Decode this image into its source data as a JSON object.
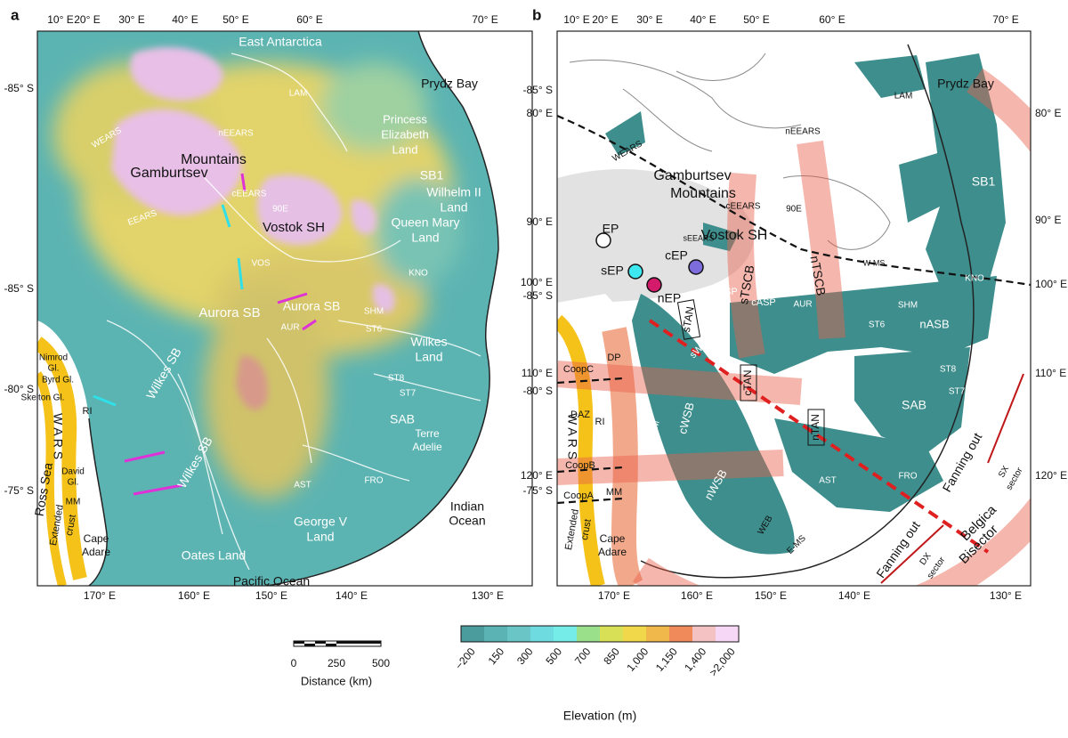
{
  "panels": [
    {
      "letter": "a",
      "top_lon": [
        "10° E",
        "20° E",
        "30° E",
        "40° E",
        "50° E",
        "60° E",
        "70° E"
      ],
      "bottom_lon": [
        "170° E",
        "160° E",
        "150° E",
        "140° E",
        "130° E"
      ],
      "left_lat": [
        "-85° S",
        "-85° S",
        "-80° S",
        "-75° S"
      ],
      "labels": [
        "East Antarctica",
        "Prydz Bay",
        "LAM",
        "Princess",
        "Elizabeth",
        "Land",
        "WEARS",
        "Gamburtsev",
        "Mountains",
        "nEEARS",
        "cEEARS",
        "SB1",
        "Wilhelm II",
        "Land",
        "Queen Mary",
        "Land",
        "90E",
        "Vostok SH",
        "EEARS",
        "VOS",
        "KNO",
        "Aurora SB",
        "Aurora SB",
        "AUR",
        "SHM",
        "ST6",
        "Wilkes",
        "Land",
        "Wilkes SB",
        "ST8",
        "ST7",
        "SAB",
        "Terre",
        "Adelie",
        "W A R S",
        "Ross Sea",
        "Nimrod",
        "Gl.",
        "Byrd Gl.",
        "Skelton Gl.",
        "RI",
        "David",
        "Gl.",
        "MM",
        "Extended",
        "crust",
        "Cape",
        "Adare",
        "Oates Land",
        "Pacific Ocean",
        "George V",
        "Land",
        "Indian",
        "Ocean",
        "AST",
        "FRO",
        "Wilkes SB"
      ]
    },
    {
      "letter": "b",
      "top_lon": [
        "10° E",
        "20° E",
        "30° E",
        "40° E",
        "50° E",
        "60° E",
        "70° E"
      ],
      "bottom_lon": [
        "170° E",
        "160° E",
        "150° E",
        "140° E",
        "130° E"
      ],
      "left_lat": [
        "-85° S",
        "80° E",
        "90° E",
        "100° E",
        "-85° S",
        "110° E",
        "-80° S",
        "120° E",
        "-75° S"
      ],
      "right_lat": [
        "80° E",
        "90° E",
        "100° E",
        "110° E",
        "120° E"
      ],
      "labels": [
        "Prydz Bay",
        "LAM",
        "nEEARS",
        "WEARS",
        "Gamburtsev",
        "Mountains",
        "cEEARS",
        "90E",
        "SB1",
        "Vostok SH",
        "sEEARS",
        "EP",
        "sEP",
        "cEP",
        "nEP",
        "sTSCB",
        "nTSCB",
        "VOS",
        "W-MS",
        "KNO",
        "sTAN",
        "sASP",
        "cASP",
        "AUR",
        "SHM",
        "ST6",
        "nASB",
        "DP",
        "CoopC",
        "sWSB",
        "cTAN",
        "ST8",
        "ST7",
        "SAB",
        "DAZ",
        "RI",
        "cWSB",
        "cTAM",
        "nTAN",
        "W A R S",
        "CoopB",
        "CoopA",
        "MM",
        "nWSB",
        "AST",
        "FRO",
        "WEB",
        "E-MS",
        "Extended",
        "crust",
        "Cape",
        "Adare",
        "Fanning out",
        "SX",
        "sector",
        "Belgica",
        "Bisector",
        "Fanning out",
        "DX",
        "sector"
      ]
    }
  ],
  "scale_bar": {
    "ticks": [
      "0",
      "250",
      "500"
    ],
    "label": "Distance (km)"
  },
  "colorbar": {
    "ticks": [
      "−200",
      "150",
      "300",
      "500",
      "700",
      "850",
      "1,000",
      "1,150",
      "1,400",
      ">2,000"
    ],
    "label": "Elevation (m)"
  }
}
